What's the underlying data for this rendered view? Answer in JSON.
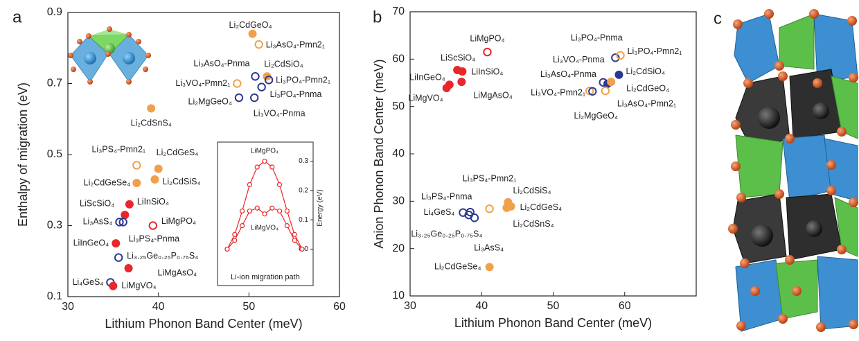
{
  "chart_data": [
    {
      "type": "scatter",
      "panel_label": "a",
      "x_label": "Lithium Phonon Band Center (meV)",
      "y_label": "Enthalpy of migration (eV)",
      "xlim": [
        30,
        60
      ],
      "ylim": [
        0.1,
        0.9
      ],
      "xticks": [
        30,
        40,
        50,
        60
      ],
      "yticks": [
        0.1,
        0.3,
        0.5,
        0.7,
        0.9
      ],
      "points": [
        {
          "label": "Li₂CdGeO₄",
          "x": 50.4,
          "y": 0.84,
          "color": "#f0a04b",
          "filled": true
        },
        {
          "label": "Li₃AsO₄-Pmn2₁",
          "x": 51.1,
          "y": 0.81,
          "color": "#f0a04b",
          "filled": false
        },
        {
          "label": "Li₃AsO₄-Pnma",
          "x": 50.7,
          "y": 0.72,
          "color": "#2b3990",
          "filled": false
        },
        {
          "label": "Li₂CdSiO₄",
          "x": 52.0,
          "y": 0.72,
          "color": "#f0a04b",
          "filled": true
        },
        {
          "label": "Li₃PO₄-Pmn2₁",
          "x": 52.2,
          "y": 0.71,
          "color": "#2b3990",
          "filled": false
        },
        {
          "label": "Li₃VO₄-Pmn2₁",
          "x": 48.7,
          "y": 0.7,
          "color": "#f0a04b",
          "filled": false
        },
        {
          "label": "Li₃PO₄-Pnma",
          "x": 51.4,
          "y": 0.69,
          "color": "#2b3990",
          "filled": false
        },
        {
          "label": "Li₂MgGeO₄",
          "x": 48.9,
          "y": 0.66,
          "color": "#2b3990",
          "filled": false
        },
        {
          "label": "Li₃VO₄-Pnma",
          "x": 50.6,
          "y": 0.66,
          "color": "#2b3990",
          "filled": false
        },
        {
          "label": "Li₂CdSnS₄",
          "x": 39.2,
          "y": 0.63,
          "color": "#f0a04b",
          "filled": true
        },
        {
          "label": "Li₃PS₄-Pmn2₁",
          "x": 37.6,
          "y": 0.47,
          "color": "#f0a04b",
          "filled": false
        },
        {
          "label": "Li₂CdGeS₄",
          "x": 40.0,
          "y": 0.46,
          "color": "#f0a04b",
          "filled": true
        },
        {
          "label": "Li₂CdGeSe₄",
          "x": 37.6,
          "y": 0.42,
          "color": "#f0a04b",
          "filled": true
        },
        {
          "label": "Li₂CdSiS₄",
          "x": 39.6,
          "y": 0.43,
          "color": "#f0a04b",
          "filled": true
        },
        {
          "label": "LiInSiO₄",
          "x": 36.8,
          "y": 0.36,
          "color": "#e8262b",
          "filled": true
        },
        {
          "label": "LiScSiO₄",
          "x": 36.3,
          "y": 0.33,
          "color": "#e8262b",
          "filled": true
        },
        {
          "label": "Li₃AsS₄",
          "x": 35.7,
          "y": 0.31,
          "color": "#2b3990",
          "filled": false
        },
        {
          "label": "Li₃PS₄-Pnma",
          "x": 36.1,
          "y": 0.31,
          "color": "#2b3990",
          "filled": false
        },
        {
          "label": "LiMgPO₄",
          "x": 39.4,
          "y": 0.3,
          "color": "#e8262b",
          "filled": false
        },
        {
          "label": "LiInGeO₄",
          "x": 35.3,
          "y": 0.25,
          "color": "#e8262b",
          "filled": true
        },
        {
          "label": "Li₃.₂₅Ge₀.₂₅P₀.₇₅S₄",
          "x": 35.6,
          "y": 0.21,
          "color": "#2b3990",
          "filled": false
        },
        {
          "label": "LiMgAsO₄",
          "x": 36.7,
          "y": 0.18,
          "color": "#e8262b",
          "filled": true
        },
        {
          "label": "Li₄GeS₄",
          "x": 34.7,
          "y": 0.14,
          "color": "#2b3990",
          "filled": false
        },
        {
          "label": "LiMgVO₄",
          "x": 35.0,
          "y": 0.13,
          "color": "#e8262b",
          "filled": true
        }
      ]
    },
    {
      "type": "line",
      "x_label": "Li-ion migration path",
      "y_label": "Energy (eV)",
      "categories": [
        null,
        null,
        null,
        null,
        null,
        null,
        null,
        null,
        null,
        null,
        null
      ],
      "ylim": [
        -0.025,
        0.325
      ],
      "yticks": [
        {
          "value": 0,
          "label": "0.0"
        },
        0.1,
        0.2,
        0.3
      ],
      "series": [
        {
          "name": "LiMgPO₄",
          "color": "#e8262b",
          "values": [
            0.0,
            0.05,
            0.13,
            0.22,
            0.28,
            0.3,
            0.28,
            0.22,
            0.13,
            0.05,
            0.0
          ]
        },
        {
          "name": "LiMgVO₄",
          "color": "#e8262b",
          "values": [
            0.0,
            0.03,
            0.08,
            0.13,
            0.14,
            0.12,
            0.14,
            0.13,
            0.08,
            0.03,
            0.0
          ]
        }
      ]
    },
    {
      "type": "scatter",
      "panel_label": "b",
      "x_label": "Lithium Phonon Band Center (meV)",
      "y_label": "Anion Phonon Band Center (meV)",
      "xlim": [
        30,
        70
      ],
      "ylim": [
        10,
        70
      ],
      "xticks": [
        30,
        40,
        50,
        60
      ],
      "yticks": [
        10,
        20,
        30,
        40,
        50,
        60,
        70
      ],
      "points": [
        {
          "label": "LiMgPO₄",
          "x": 40.8,
          "y": 61.5,
          "color": "#e8262b",
          "filled": false
        },
        {
          "label": "LiScSiO₄",
          "x": 36.6,
          "y": 57.7,
          "color": "#e8262b",
          "filled": true
        },
        {
          "label": "LiInSiO₄",
          "x": 37.3,
          "y": 57.4,
          "color": "#e8262b",
          "filled": true
        },
        {
          "label": "LiInGeO₄",
          "x": 35.5,
          "y": 54.6,
          "color": "#e8262b",
          "filled": true
        },
        {
          "label": "LiMgVO₄",
          "x": 35.1,
          "y": 53.9,
          "color": "#e8262b",
          "filled": true
        },
        {
          "label": "LiMgAsO₄",
          "x": 37.2,
          "y": 55.2,
          "color": "#e8262b",
          "filled": true
        },
        {
          "label": "Li₃PO₄-Pnma",
          "x": 58.7,
          "y": 60.3,
          "color": "#2b3990",
          "filled": false
        },
        {
          "label": "Li₃PO₄-Pmn2₁",
          "x": 59.4,
          "y": 60.8,
          "color": "#f0a04b",
          "filled": false
        },
        {
          "label": "Li₃VO₄-Pnma",
          "x": 57.0,
          "y": 55.1,
          "color": "#2b3990",
          "filled": false
        },
        {
          "label": "Li₂CdSiO₄",
          "x": 59.2,
          "y": 56.7,
          "color": "#2b3990",
          "filled": true
        },
        {
          "label": "Li₃AsO₄-Pnma",
          "x": 57.6,
          "y": 54.8,
          "color": "#2b3990",
          "filled": true
        },
        {
          "label": "Li₂CdGeO₄",
          "x": 58.1,
          "y": 55.2,
          "color": "#f0a04b",
          "filled": true
        },
        {
          "label": "Li₃AsO₄-Pmn2₁",
          "x": 57.3,
          "y": 53.3,
          "color": "#f0a04b",
          "filled": false
        },
        {
          "label": "Li₃VO₄-Pmn2₁",
          "x": 55.1,
          "y": 53.3,
          "color": "#f0a04b",
          "filled": false
        },
        {
          "label": "Li₂MgGeO₄",
          "x": 55.5,
          "y": 53.2,
          "color": "#2b3990",
          "filled": false
        },
        {
          "label": "Li₃PS₄-Pmn2₁",
          "x": 41.1,
          "y": 28.4,
          "color": "#f0a04b",
          "filled": false
        },
        {
          "label": "Li₂CdSiS₄",
          "x": 43.7,
          "y": 29.8,
          "color": "#f0a04b",
          "filled": true
        },
        {
          "label": "Li₂CdGeS₄",
          "x": 44.1,
          "y": 28.9,
          "color": "#f0a04b",
          "filled": true
        },
        {
          "label": "Li₂CdSnS₄",
          "x": 43.5,
          "y": 28.6,
          "color": "#f0a04b",
          "filled": true
        },
        {
          "label": "Li₃PS₄-Pnma",
          "x": 38.4,
          "y": 27.7,
          "color": "#2b3990",
          "filled": false
        },
        {
          "label": "Li₄GeS₄",
          "x": 37.4,
          "y": 27.6,
          "color": "#2b3990",
          "filled": false
        },
        {
          "label": "Li₃.₂₅Ge₀.₂₅P₀.₇₅S₄",
          "x": 39.0,
          "y": 26.5,
          "color": "#2b3990",
          "filled": false
        },
        {
          "label": "Li₃AsS₄",
          "x": 38.2,
          "y": 27.1,
          "color": "#2b3990",
          "filled": false
        },
        {
          "label": "Li₂CdGeSe₄",
          "x": 41.1,
          "y": 16.1,
          "color": "#f0a04b",
          "filled": true
        }
      ]
    }
  ],
  "panel_c": {
    "label": "c"
  }
}
